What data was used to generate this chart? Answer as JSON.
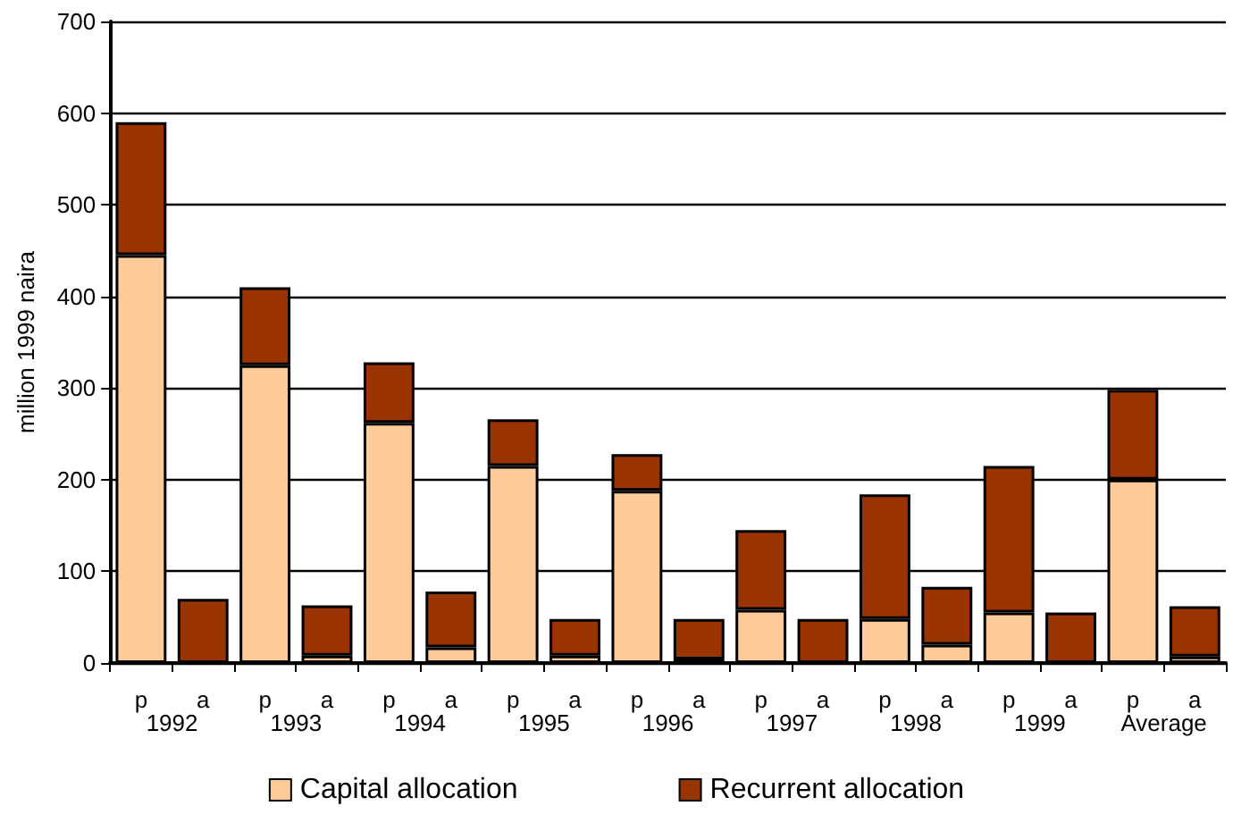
{
  "chart_data": {
    "type": "bar",
    "ylabel": "million 1999 naira",
    "stacked": true,
    "categories": [
      "p",
      "a",
      "p",
      "a",
      "p",
      "a",
      "p",
      "a",
      "p",
      "a",
      "p",
      "a",
      "p",
      "a",
      "p",
      "a",
      "p",
      "a"
    ],
    "series": [
      {
        "name": "Capital allocation",
        "color": "#ffcc99",
        "values": [
          445,
          null,
          325,
          8,
          262,
          17,
          215,
          8,
          188,
          4,
          58,
          null,
          48,
          20,
          55,
          null,
          200,
          7
        ]
      },
      {
        "name": "Recurrent allocation",
        "color": "#993300",
        "values": [
          145,
          70,
          85,
          55,
          66,
          61,
          51,
          40,
          40,
          44,
          87,
          48,
          136,
          63,
          160,
          55,
          98,
          55
        ]
      }
    ],
    "annotations": [
      "1992",
      "1993",
      "1994",
      "1995",
      "1996",
      "1997",
      "1998",
      "1999",
      "Average"
    ],
    "ylim": [
      0,
      700
    ],
    "yticks": [
      0,
      100,
      200,
      300,
      400,
      500,
      600,
      700
    ],
    "grid": "y",
    "legend": "bottom"
  }
}
